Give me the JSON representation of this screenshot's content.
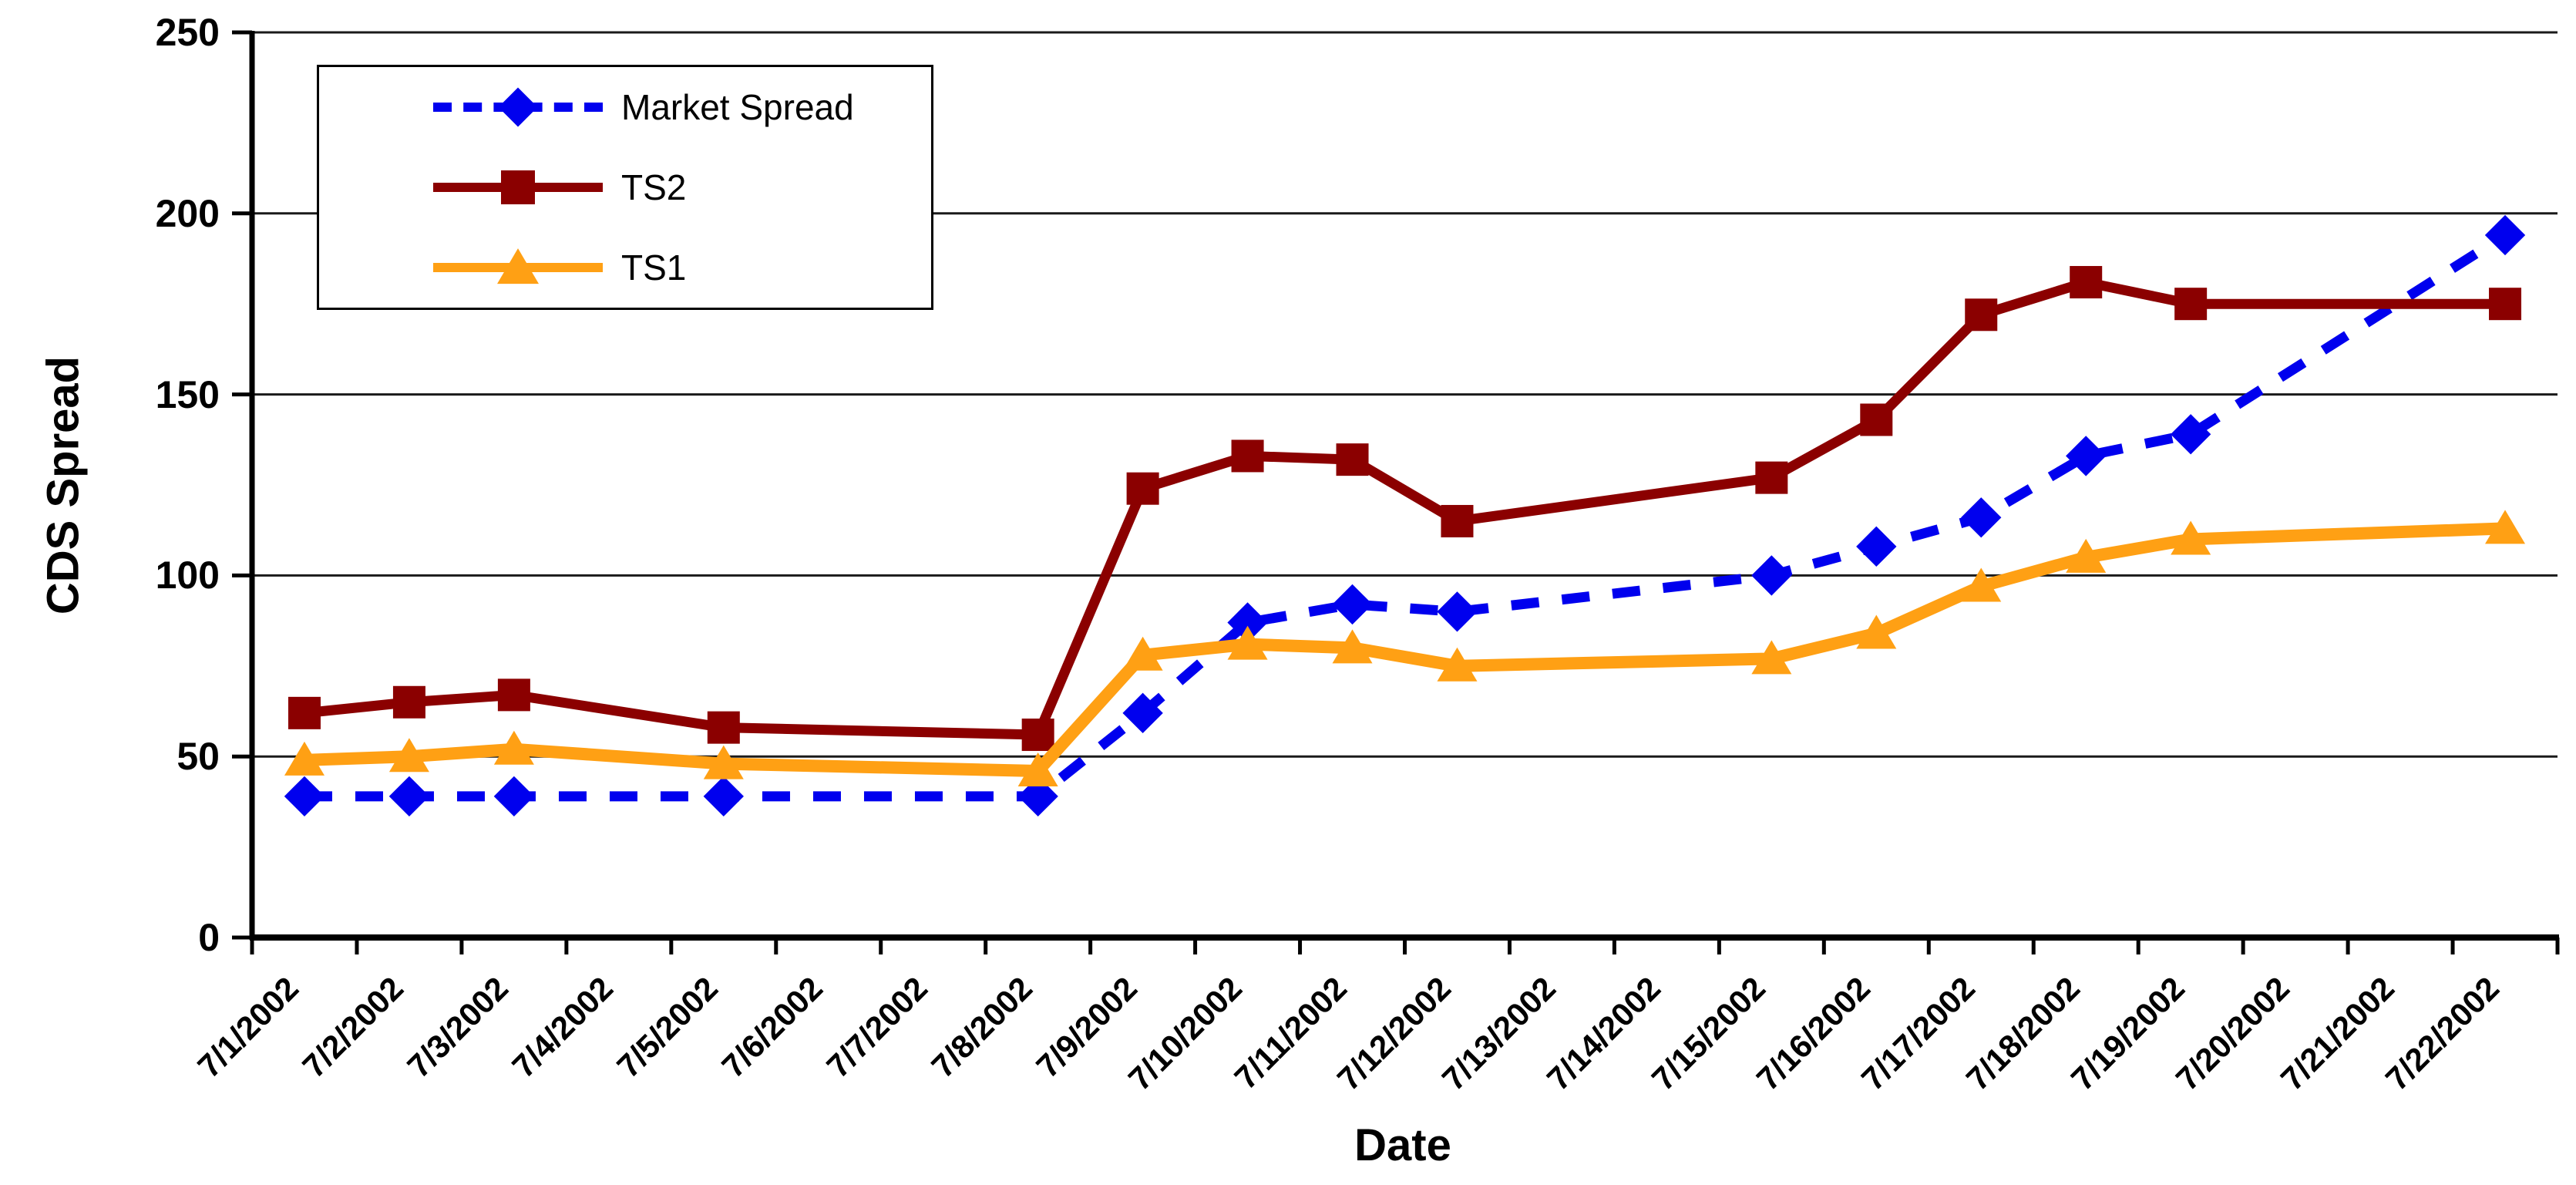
{
  "chart_data": {
    "type": "line",
    "title": "",
    "xlabel": "Date",
    "ylabel": "CDS Spread",
    "ylim": [
      0,
      250
    ],
    "yticks": [
      0,
      50,
      100,
      150,
      200,
      250
    ],
    "grid": true,
    "legend_position": "top-left",
    "categories": [
      "7/1/2002",
      "7/2/2002",
      "7/3/2002",
      "7/4/2002",
      "7/5/2002",
      "7/6/2002",
      "7/7/2002",
      "7/8/2002",
      "7/9/2002",
      "7/10/2002",
      "7/11/2002",
      "7/12/2002",
      "7/13/2002",
      "7/14/2002",
      "7/15/2002",
      "7/16/2002",
      "7/17/2002",
      "7/18/2002",
      "7/19/2002",
      "7/20/2002",
      "7/21/2002",
      "7/22/2002"
    ],
    "series": [
      {
        "name": "Market Spread",
        "color": "#0000EE",
        "line_style": "dashed",
        "marker": "diamond",
        "values": [
          39,
          39,
          39,
          null,
          39,
          null,
          null,
          39,
          62,
          87,
          92,
          90,
          null,
          null,
          100,
          108,
          116,
          133,
          139,
          null,
          null,
          194
        ]
      },
      {
        "name": "TS2",
        "color": "#8B0000",
        "line_style": "solid",
        "marker": "square",
        "values": [
          62,
          65,
          67,
          null,
          58,
          null,
          null,
          56,
          124,
          133,
          132,
          115,
          null,
          null,
          127,
          143,
          172,
          181,
          175,
          null,
          null,
          175
        ]
      },
      {
        "name": "TS1",
        "color": "#FFA014",
        "line_style": "solid",
        "marker": "triangle",
        "values": [
          49,
          50,
          52,
          null,
          48,
          null,
          null,
          46,
          78,
          81,
          80,
          75,
          null,
          null,
          77,
          84,
          97,
          105,
          110,
          null,
          null,
          113
        ]
      }
    ]
  },
  "colors": {
    "background": "#FFFFFF",
    "gridline": "#1A1A1A",
    "axis": "#000000",
    "text": "#000000"
  }
}
